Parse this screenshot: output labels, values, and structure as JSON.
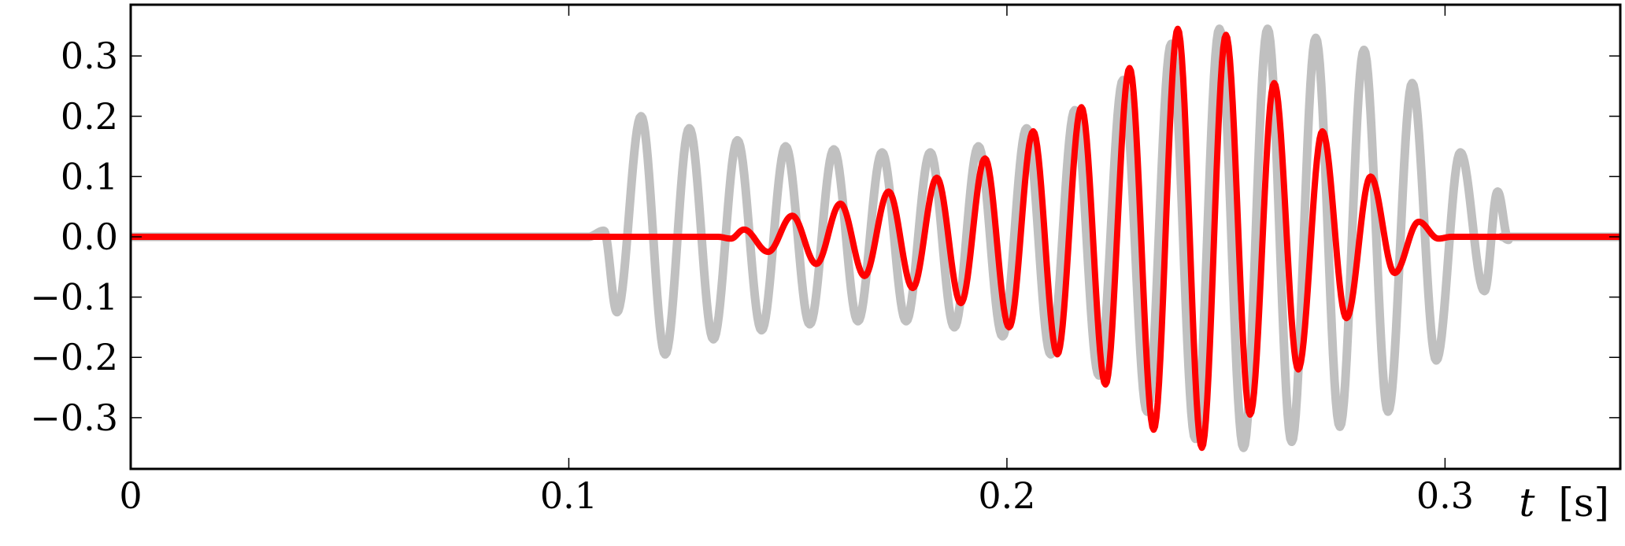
{
  "chart_data": {
    "type": "line",
    "title": "",
    "xlabel_var": "t",
    "xlabel_unit": "[s]",
    "ylabel": "",
    "xlim": [
      0,
      0.34
    ],
    "ylim": [
      -0.385,
      0.385
    ],
    "grid": false,
    "legend": "none",
    "x_ticks": [
      {
        "value": 0,
        "label": "0"
      },
      {
        "value": 0.1,
        "label": "0.1"
      },
      {
        "value": 0.2,
        "label": "0.2"
      },
      {
        "value": 0.3,
        "label": "0.3"
      }
    ],
    "y_ticks": [
      {
        "value": 0.3,
        "label": "0.3"
      },
      {
        "value": 0.2,
        "label": "0.2"
      },
      {
        "value": 0.1,
        "label": "0.1"
      },
      {
        "value": 0.0,
        "label": "0.0"
      },
      {
        "value": -0.1,
        "label": "−0.1"
      },
      {
        "value": -0.2,
        "label": "−0.2"
      },
      {
        "value": -0.3,
        "label": "−0.3"
      }
    ],
    "series": [
      {
        "color": "#c0c0c0",
        "t_start": 0.1045,
        "t_end": 0.313,
        "extrema": [
          [
            0.108,
            0.01
          ],
          [
            0.111,
            -0.125
          ],
          [
            0.1165,
            0.2
          ],
          [
            0.122,
            -0.195
          ],
          [
            0.1275,
            0.18
          ],
          [
            0.133,
            -0.17
          ],
          [
            0.1385,
            0.16
          ],
          [
            0.144,
            -0.155
          ],
          [
            0.1495,
            0.15
          ],
          [
            0.155,
            -0.145
          ],
          [
            0.1605,
            0.145
          ],
          [
            0.166,
            -0.14
          ],
          [
            0.1715,
            0.14
          ],
          [
            0.177,
            -0.14
          ],
          [
            0.1825,
            0.14
          ],
          [
            0.188,
            -0.15
          ],
          [
            0.1935,
            0.15
          ],
          [
            0.199,
            -0.165
          ],
          [
            0.2045,
            0.18
          ],
          [
            0.21,
            -0.195
          ],
          [
            0.2155,
            0.21
          ],
          [
            0.221,
            -0.23
          ],
          [
            0.2265,
            0.26
          ],
          [
            0.232,
            -0.29
          ],
          [
            0.2375,
            0.32
          ],
          [
            0.243,
            -0.335
          ],
          [
            0.2485,
            0.345
          ],
          [
            0.254,
            -0.35
          ],
          [
            0.2595,
            0.345
          ],
          [
            0.265,
            -0.34
          ],
          [
            0.2705,
            0.33
          ],
          [
            0.276,
            -0.315
          ],
          [
            0.2815,
            0.31
          ],
          [
            0.287,
            -0.29
          ],
          [
            0.2925,
            0.255
          ],
          [
            0.298,
            -0.205
          ],
          [
            0.3035,
            0.14
          ],
          [
            0.309,
            -0.09
          ],
          [
            0.312,
            0.075
          ],
          [
            0.3145,
            -0.005
          ]
        ]
      },
      {
        "color": "#ff0000",
        "t_start": 0.134,
        "t_end": 0.3015,
        "extrema": [
          [
            0.137,
            -0.003
          ],
          [
            0.14,
            0.012
          ],
          [
            0.1455,
            -0.025
          ],
          [
            0.151,
            0.035
          ],
          [
            0.1565,
            -0.045
          ],
          [
            0.162,
            0.055
          ],
          [
            0.1675,
            -0.065
          ],
          [
            0.173,
            0.075
          ],
          [
            0.1785,
            -0.085
          ],
          [
            0.184,
            0.098
          ],
          [
            0.1895,
            -0.11
          ],
          [
            0.195,
            0.13
          ],
          [
            0.2005,
            -0.15
          ],
          [
            0.206,
            0.175
          ],
          [
            0.2115,
            -0.195
          ],
          [
            0.217,
            0.215
          ],
          [
            0.2225,
            -0.245
          ],
          [
            0.228,
            0.28
          ],
          [
            0.2335,
            -0.32
          ],
          [
            0.239,
            0.345
          ],
          [
            0.2445,
            -0.35
          ],
          [
            0.25,
            0.335
          ],
          [
            0.2555,
            -0.295
          ],
          [
            0.261,
            0.255
          ],
          [
            0.2665,
            -0.22
          ],
          [
            0.272,
            0.175
          ],
          [
            0.2775,
            -0.135
          ],
          [
            0.283,
            0.1
          ],
          [
            0.2885,
            -0.06
          ],
          [
            0.294,
            0.025
          ],
          [
            0.2985,
            -0.003
          ]
        ]
      }
    ]
  }
}
